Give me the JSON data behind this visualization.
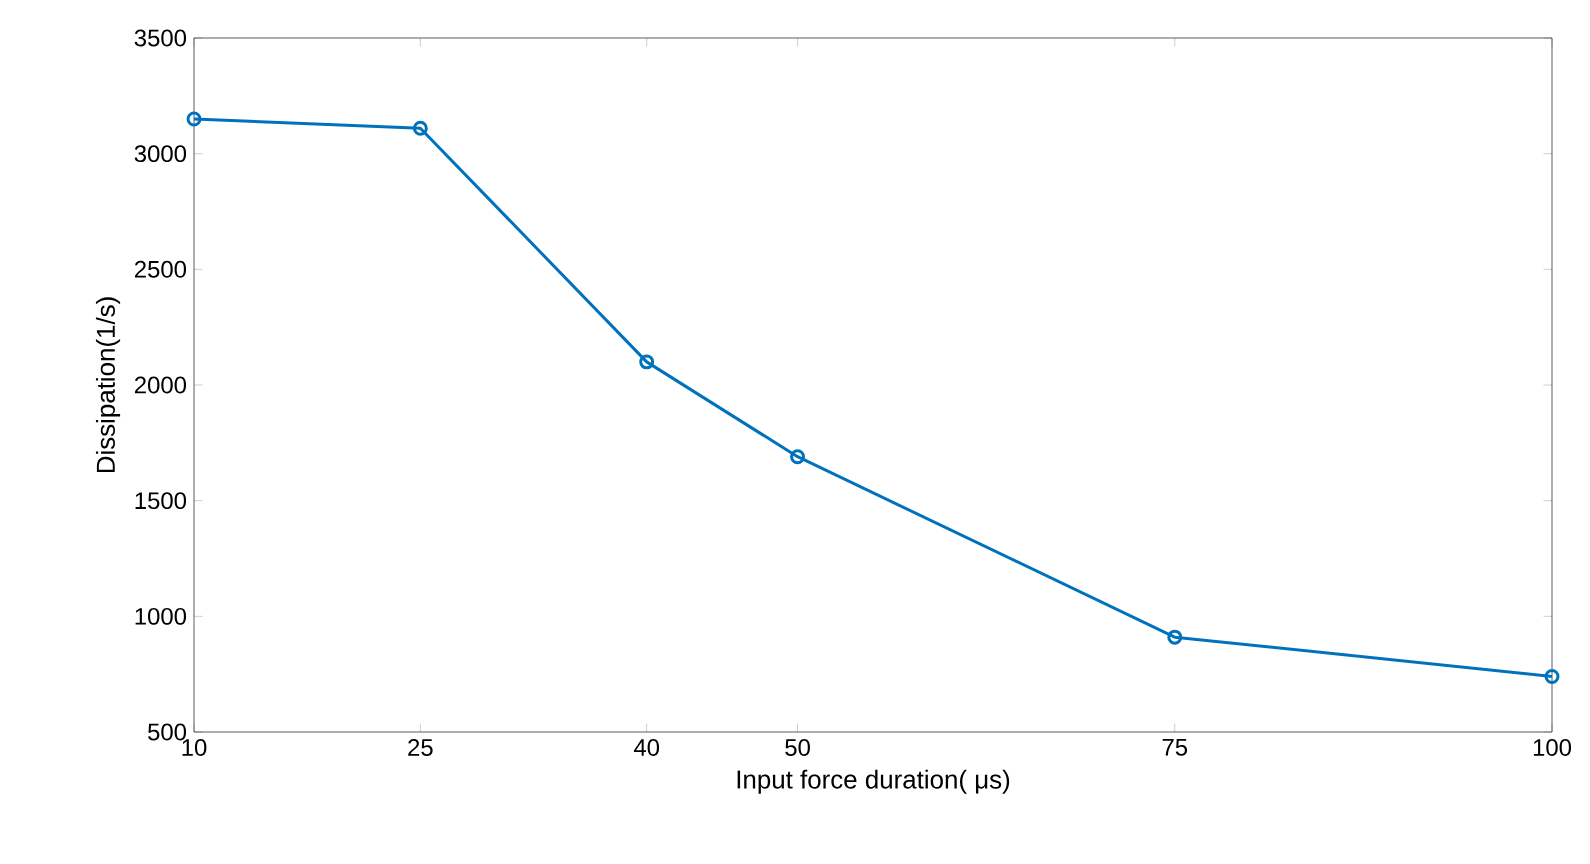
{
  "chart_data": {
    "type": "line",
    "xlabel": "Input force duration( μs)",
    "ylabel": "Dissipation(1/s)",
    "x": [
      10,
      25,
      40,
      50,
      75,
      100
    ],
    "series": [
      {
        "color": "#0072bd",
        "values": [
          3150,
          3110,
          2100,
          1690,
          910,
          740
        ]
      }
    ],
    "xlim": [
      10,
      100
    ],
    "xticks": [
      10,
      25,
      40,
      50,
      75,
      100
    ],
    "ylim": [
      500,
      3500
    ],
    "yticks": [
      500,
      1000,
      1500,
      2000,
      2500,
      3000,
      3500
    ],
    "grid": false,
    "marker": "circle",
    "line_style": "solid"
  }
}
